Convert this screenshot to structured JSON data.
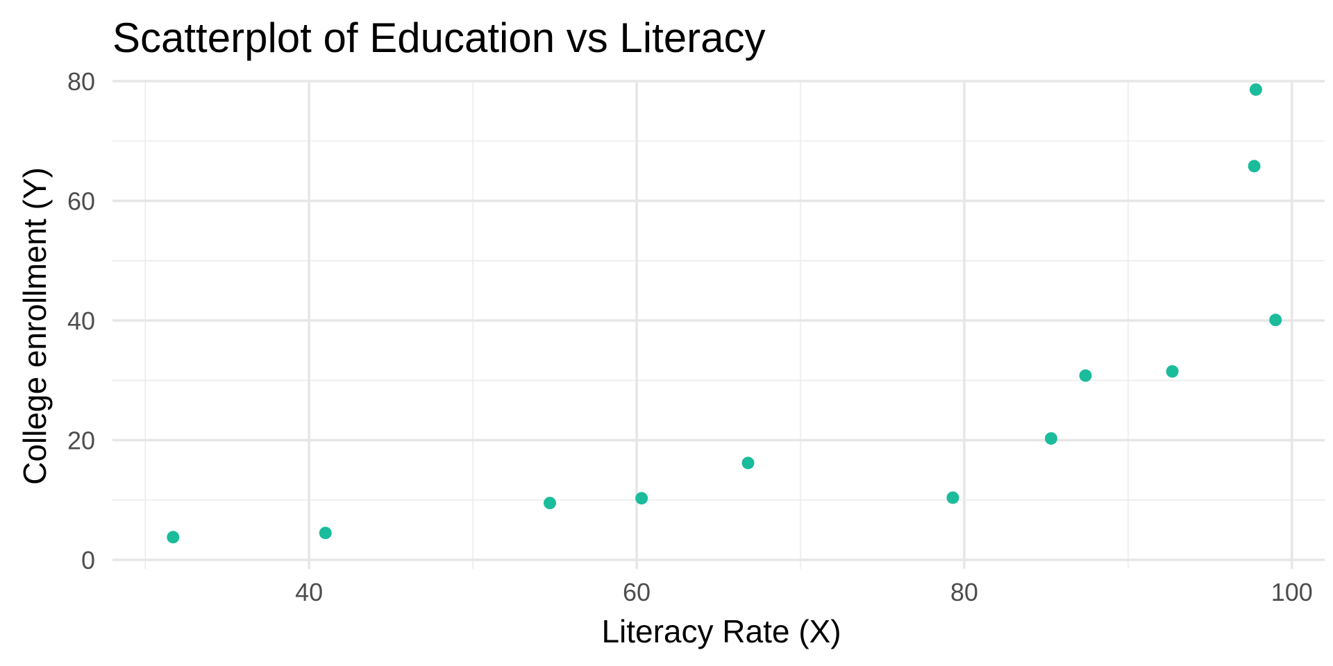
{
  "chart_data": {
    "type": "scatter",
    "title": "Scatterplot of Education vs Literacy",
    "xlabel": "Literacy Rate (X)",
    "ylabel": "College enrollment (Y)",
    "xlim": [
      28,
      102
    ],
    "ylim": [
      -1.5,
      80
    ],
    "xticks": [
      40,
      60,
      80,
      100
    ],
    "yticks": [
      0,
      20,
      40,
      60,
      80
    ],
    "x_minor": [
      30,
      50,
      70,
      90
    ],
    "y_minor": [
      10,
      30,
      50,
      70
    ],
    "grid": true,
    "point_color": "#1abc9c",
    "points": [
      {
        "x": 31.7,
        "y": 3.8
      },
      {
        "x": 41.0,
        "y": 4.5
      },
      {
        "x": 54.7,
        "y": 9.5
      },
      {
        "x": 60.3,
        "y": 10.3
      },
      {
        "x": 66.8,
        "y": 16.2
      },
      {
        "x": 79.3,
        "y": 10.4
      },
      {
        "x": 85.3,
        "y": 20.3
      },
      {
        "x": 87.4,
        "y": 30.8
      },
      {
        "x": 92.7,
        "y": 31.5
      },
      {
        "x": 97.7,
        "y": 65.8
      },
      {
        "x": 97.8,
        "y": 78.6
      },
      {
        "x": 99.0,
        "y": 40.1
      }
    ]
  }
}
